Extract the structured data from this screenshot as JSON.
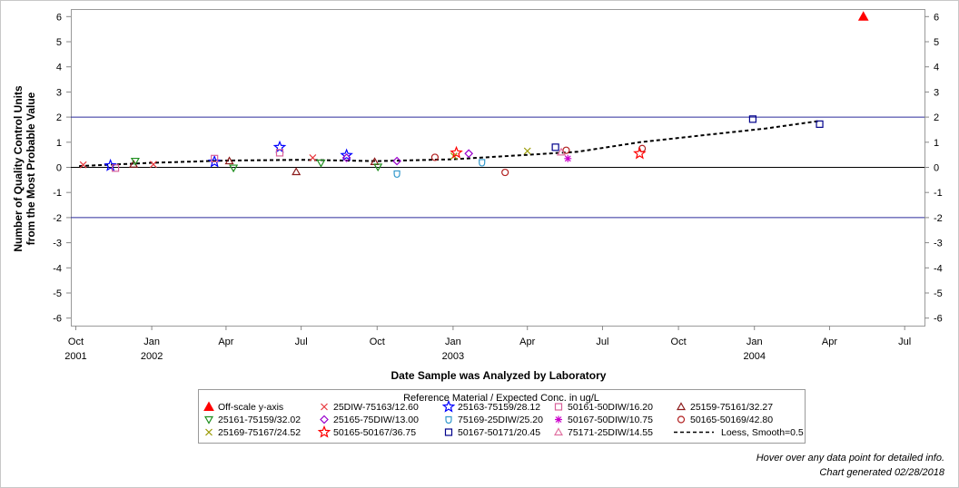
{
  "chart_data": {
    "type": "scatter",
    "ylabel_lines": [
      "Number of Quality Control Units",
      "from the Most Probable Value"
    ],
    "xlabel": "Date Sample was Analyzed by Laboratory",
    "ylim": [
      -6.3,
      6.3
    ],
    "xlim": [
      "2001-09-25",
      "2004-07-25"
    ],
    "y_ticks": [
      "6",
      "5",
      "4",
      "3",
      "2",
      "1",
      "0",
      "-1",
      "-2",
      "-3",
      "-4",
      "-5",
      "-6"
    ],
    "y_tick_values": [
      6,
      5,
      4,
      3,
      2,
      1,
      0,
      -1,
      -2,
      -3,
      -4,
      -5,
      -6
    ],
    "x_ticks": [
      {
        "date": "2001-10-01",
        "label": "Oct",
        "year": "2001"
      },
      {
        "date": "2002-01-01",
        "label": "Jan",
        "year": "2002"
      },
      {
        "date": "2002-04-01",
        "label": "Apr",
        "year": ""
      },
      {
        "date": "2002-07-01",
        "label": "Jul",
        "year": ""
      },
      {
        "date": "2002-10-01",
        "label": "Oct",
        "year": ""
      },
      {
        "date": "2003-01-01",
        "label": "Jan",
        "year": "2003"
      },
      {
        "date": "2003-04-01",
        "label": "Apr",
        "year": ""
      },
      {
        "date": "2003-07-01",
        "label": "Jul",
        "year": ""
      },
      {
        "date": "2003-10-01",
        "label": "Oct",
        "year": ""
      },
      {
        "date": "2004-01-01",
        "label": "Jan",
        "year": "2004"
      },
      {
        "date": "2004-04-01",
        "label": "Apr",
        "year": ""
      },
      {
        "date": "2004-07-01",
        "label": "Jul",
        "year": ""
      }
    ],
    "reference_lines": [
      2,
      -2,
      0
    ],
    "legend_title": "Reference Material / Expected Conc. in ug/L",
    "series": [
      {
        "name": "Off-scale y-axis",
        "marker": "triangle-filled",
        "color": "#ff0000",
        "points": [
          [
            "2004-05-12",
            6.0
          ]
        ]
      },
      {
        "name": "25DIW-75163/12.60",
        "marker": "x",
        "color": "#e8383d",
        "points": [
          [
            "2001-10-10",
            0.1
          ],
          [
            "2002-01-03",
            0.12
          ],
          [
            "2002-07-15",
            0.38
          ]
        ]
      },
      {
        "name": "25163-75159/28.12",
        "marker": "star",
        "color": "#0000ff",
        "points": [
          [
            "2001-11-12",
            0.07
          ],
          [
            "2002-03-18",
            0.22
          ],
          [
            "2002-06-05",
            0.8
          ],
          [
            "2002-08-25",
            0.48
          ]
        ]
      },
      {
        "name": "50161-50DIW/16.20",
        "marker": "square",
        "color": "#d8609a",
        "points": [
          [
            "2001-11-18",
            -0.03
          ],
          [
            "2002-03-18",
            0.35
          ],
          [
            "2002-06-05",
            0.58
          ]
        ]
      },
      {
        "name": "25159-75161/32.27",
        "marker": "triangle",
        "color": "#8b1a1a",
        "points": [
          [
            "2001-12-10",
            0.12
          ],
          [
            "2002-04-05",
            0.25
          ],
          [
            "2002-06-25",
            -0.18
          ],
          [
            "2002-09-28",
            0.22
          ]
        ]
      },
      {
        "name": "25161-75159/32.02",
        "marker": "triangle-down",
        "color": "#1f8f1f",
        "points": [
          [
            "2001-12-12",
            0.25
          ],
          [
            "2002-04-10",
            -0.02
          ],
          [
            "2002-07-25",
            0.18
          ],
          [
            "2002-10-02",
            0.02
          ]
        ]
      },
      {
        "name": "25165-75DIW/13.00",
        "marker": "diamond",
        "color": "#9900cc",
        "points": [
          [
            "2002-08-25",
            0.38
          ],
          [
            "2002-10-25",
            0.25
          ],
          [
            "2003-01-20",
            0.55
          ]
        ]
      },
      {
        "name": "75169-25DIW/25.20",
        "marker": "shield",
        "color": "#3399cc",
        "points": [
          [
            "2002-10-25",
            -0.25
          ],
          [
            "2003-02-05",
            0.2
          ]
        ]
      },
      {
        "name": "50167-50DIW/10.75",
        "marker": "asterisk",
        "color": "#cc00cc",
        "points": [
          [
            "2003-05-20",
            0.35
          ]
        ]
      },
      {
        "name": "50165-50169/42.80",
        "marker": "circle",
        "color": "#b22222",
        "points": [
          [
            "2002-12-10",
            0.4
          ],
          [
            "2003-03-05",
            -0.2
          ],
          [
            "2003-05-18",
            0.68
          ],
          [
            "2003-08-18",
            0.75
          ]
        ]
      },
      {
        "name": "25169-75167/24.52",
        "marker": "x",
        "color": "#999900",
        "points": [
          [
            "2003-01-02",
            0.45
          ],
          [
            "2003-04-01",
            0.65
          ]
        ]
      },
      {
        "name": "50165-50167/36.75",
        "marker": "star",
        "color": "#ff0000",
        "points": [
          [
            "2003-01-05",
            0.58
          ],
          [
            "2003-08-15",
            0.55
          ]
        ]
      },
      {
        "name": "50167-50171/20.45",
        "marker": "square",
        "color": "#00008b",
        "points": [
          [
            "2003-05-05",
            0.8
          ],
          [
            "2003-12-30",
            1.92
          ],
          [
            "2004-03-20",
            1.72
          ]
        ]
      },
      {
        "name": "75171-25DIW/14.55",
        "marker": "triangle",
        "color": "#e070a0",
        "points": [
          [
            "2003-05-12",
            0.6
          ]
        ]
      }
    ],
    "loess": {
      "name": "Loess, Smooth=0.5",
      "points": [
        [
          "2001-10-05",
          0.05
        ],
        [
          "2002-01-01",
          0.18
        ],
        [
          "2002-04-01",
          0.27
        ],
        [
          "2002-07-01",
          0.3
        ],
        [
          "2002-10-01",
          0.25
        ],
        [
          "2003-01-01",
          0.32
        ],
        [
          "2003-04-01",
          0.5
        ],
        [
          "2003-06-01",
          0.62
        ],
        [
          "2003-08-15",
          1.0
        ],
        [
          "2003-11-01",
          1.28
        ],
        [
          "2004-01-15",
          1.55
        ],
        [
          "2004-03-20",
          1.85
        ]
      ]
    },
    "legend_order": [
      "Off-scale y-axis",
      "25DIW-75163/12.60",
      "25163-75159/28.12",
      "50161-50DIW/16.20",
      "25159-75161/32.27",
      "25161-75159/32.02",
      "25165-75DIW/13.00",
      "75169-25DIW/25.20",
      "50167-50DIW/10.75",
      "50165-50169/42.80",
      "25169-75167/24.52",
      "50165-50167/36.75",
      "50167-50171/20.45",
      "75171-25DIW/14.55",
      "Loess, Smooth=0.5"
    ]
  },
  "footer": {
    "hover_note": "Hover over any data point for detailed info.",
    "generated": "Chart generated 02/28/2018"
  },
  "colors": {
    "refline": "#2b2b9b",
    "axis": "#888888"
  }
}
